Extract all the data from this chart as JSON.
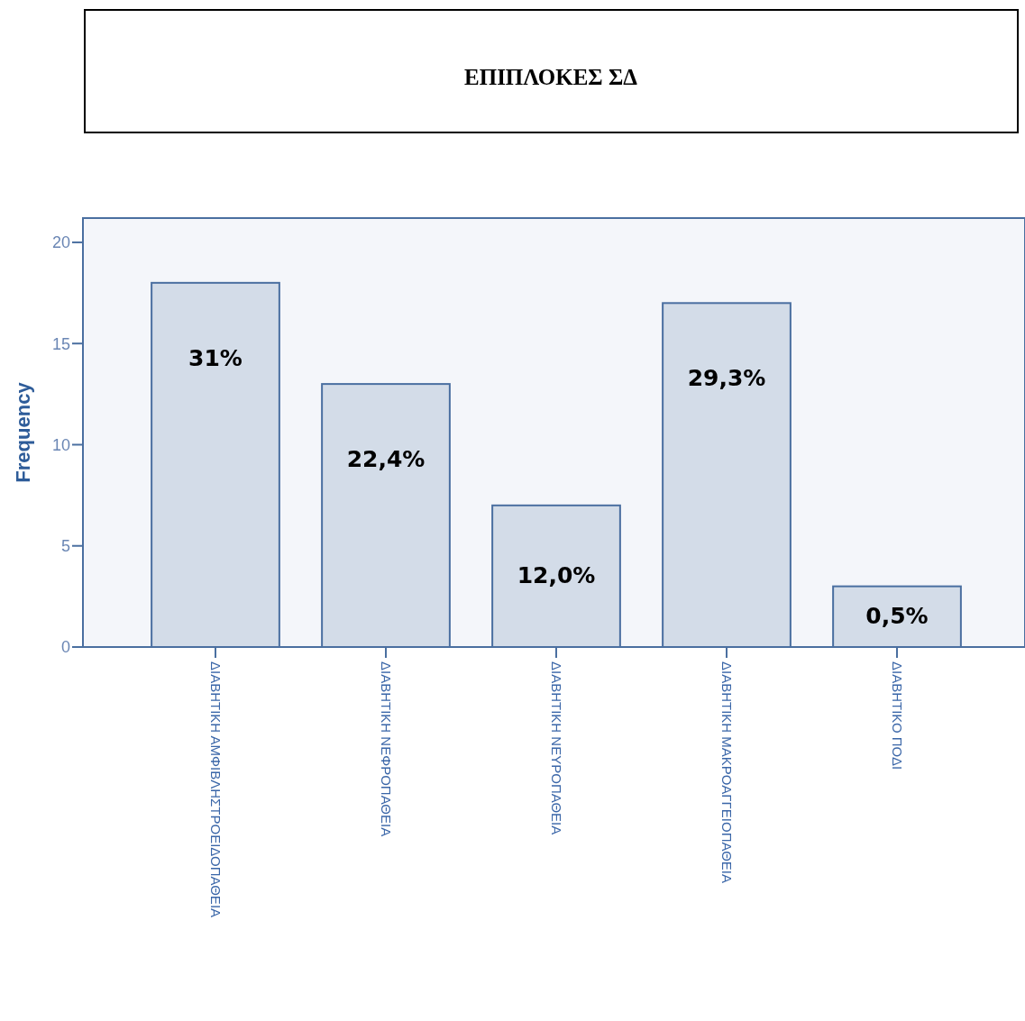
{
  "chart_data": {
    "type": "bar",
    "title": "ΕΠΙΠΛΟΚΕΣ ΣΔ",
    "ylabel": "Frequency",
    "categories": [
      "ΔΙΑΒΗΤΙΚΗ ΑΜΦΙΒΛΗΣΤΡΟΕΙΔΟΠΑΘΕΙΑ",
      "ΔΙΑΒΗΤΙΚΗ ΝΕΦΡΟΠΑΘΕΙΑ",
      "ΔΙΑΒΗΤΙΚΗ ΝΕΥΡΟΠΑΘΕΙΑ",
      "ΔΙΑΒΗΤΙΚΗ ΜΑΚΡΟΑΓΓΕΙΟΠΑΘΕΙΑ",
      "ΔΙΑΒΗΤΙΚΟ ΠΟΔΙ"
    ],
    "values": [
      18,
      13,
      7,
      17,
      3
    ],
    "annotations": [
      "31%",
      "22,4%",
      "12,0%",
      "29,3%",
      "0,5%"
    ],
    "color": "#d3dce8",
    "ylim": [
      0,
      21.2
    ],
    "yticks": [
      0,
      5,
      10,
      15,
      20
    ],
    "grid": false
  }
}
